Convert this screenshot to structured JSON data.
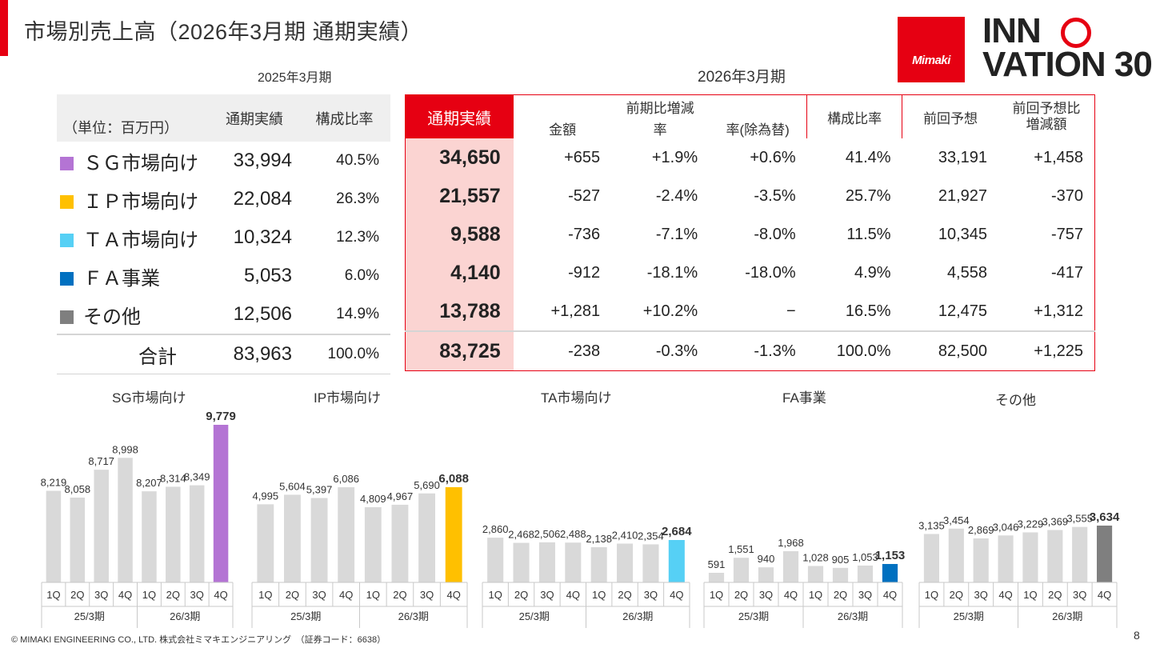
{
  "header": {
    "title": "市場別売上高（2026年3月期 通期実績）"
  },
  "logo": {
    "brand": "Mimaki",
    "line1": "INN",
    "line2": "VATION 30"
  },
  "left_table": {
    "period": "2025年3月期",
    "unit": "（単位：百万円）",
    "headers": [
      "通期実績",
      "構成比率"
    ],
    "rows": [
      {
        "segment": "ＳＧ市場向け",
        "actual": "33,994",
        "ratio": "40.5%",
        "color": "#b474d4"
      },
      {
        "segment": "ＩＰ市場向け",
        "actual": "22,084",
        "ratio": "26.3%",
        "color": "#ffc000"
      },
      {
        "segment": "ＴＡ市場向け",
        "actual": "10,324",
        "ratio": "12.3%",
        "color": "#56d0f5"
      },
      {
        "segment": "ＦＡ事業",
        "actual": "5,053",
        "ratio": "6.0%",
        "color": "#0070c0"
      },
      {
        "segment": "その他",
        "actual": "12,506",
        "ratio": "14.9%",
        "color": "#7f7f7f"
      }
    ],
    "total": {
      "label": "合計",
      "actual": "83,963",
      "ratio": "100.0%"
    }
  },
  "right_table": {
    "period": "2026年3月期",
    "headers": {
      "actual": "通期実績",
      "yoy_group": "前期比増減",
      "amount": "金額",
      "rate": "率",
      "rate_fx": "率(除為替)",
      "ratio": "構成比率",
      "prev_forecast": "前回予想",
      "vs_forecast_1": "前回予想比",
      "vs_forecast_2": "増減額"
    },
    "rows": [
      {
        "actual": "34,650",
        "amount": "+655",
        "rate": "+1.9%",
        "rate_fx": "+0.6%",
        "ratio": "41.4%",
        "forecast": "33,191",
        "diff": "+1,458"
      },
      {
        "actual": "21,557",
        "amount": "-527",
        "rate": "-2.4%",
        "rate_fx": "-3.5%",
        "ratio": "25.7%",
        "forecast": "21,927",
        "diff": "-370"
      },
      {
        "actual": "9,588",
        "amount": "-736",
        "rate": "-7.1%",
        "rate_fx": "-8.0%",
        "ratio": "11.5%",
        "forecast": "10,345",
        "diff": "-757"
      },
      {
        "actual": "4,140",
        "amount": "-912",
        "rate": "-18.1%",
        "rate_fx": "-18.0%",
        "ratio": "4.9%",
        "forecast": "4,558",
        "diff": "-417"
      },
      {
        "actual": "13,788",
        "amount": "+1,281",
        "rate": "+10.2%",
        "rate_fx": "−",
        "ratio": "16.5%",
        "forecast": "12,475",
        "diff": "+1,312"
      }
    ],
    "total": {
      "actual": "83,725",
      "amount": "-238",
      "rate": "-0.3%",
      "rate_fx": "-1.3%",
      "ratio": "100.0%",
      "forecast": "82,500",
      "diff": "+1,225"
    }
  },
  "chart_data": [
    {
      "type": "bar",
      "title": "SG市場向け",
      "categories": [
        "1Q",
        "2Q",
        "3Q",
        "4Q",
        "1Q",
        "2Q",
        "3Q",
        "4Q"
      ],
      "groups": [
        "25/3期",
        "26/3期"
      ],
      "values": [
        8219,
        8058,
        8717,
        8998,
        8207,
        8314,
        8349,
        9779
      ],
      "labels": [
        "8,219",
        "8,058",
        "8,717",
        "8,998",
        "8,207",
        "8,314",
        "8,349",
        "9,779"
      ],
      "highlight_color": "#b474d4",
      "base_color": "#d9d9d9"
    },
    {
      "type": "bar",
      "title": "IP市場向け",
      "categories": [
        "1Q",
        "2Q",
        "3Q",
        "4Q",
        "1Q",
        "2Q",
        "3Q",
        "4Q"
      ],
      "groups": [
        "25/3期",
        "26/3期"
      ],
      "values": [
        4995,
        5604,
        5397,
        6086,
        4809,
        4967,
        5690,
        6088
      ],
      "labels": [
        "4,995",
        "5,604",
        "5,397",
        "6,086",
        "4,809",
        "4,967",
        "5,690",
        "6,088"
      ],
      "highlight_color": "#ffc000",
      "base_color": "#d9d9d9"
    },
    {
      "type": "bar",
      "title": "TA市場向け",
      "categories": [
        "1Q",
        "2Q",
        "3Q",
        "4Q",
        "1Q",
        "2Q",
        "3Q",
        "4Q"
      ],
      "groups": [
        "25/3期",
        "26/3期"
      ],
      "values": [
        2860,
        2468,
        2506,
        2488,
        2138,
        2410,
        2354,
        2684
      ],
      "labels": [
        "2,860",
        "2,468",
        "2,506",
        "2,488",
        "2,138",
        "2,410",
        "2,354",
        "2,684"
      ],
      "highlight_color": "#56d0f5",
      "base_color": "#d9d9d9"
    },
    {
      "type": "bar",
      "title": "FA事業",
      "categories": [
        "1Q",
        "2Q",
        "3Q",
        "4Q",
        "1Q",
        "2Q",
        "3Q",
        "4Q"
      ],
      "groups": [
        "25/3期",
        "26/3期"
      ],
      "values": [
        591,
        1551,
        940,
        1968,
        1028,
        905,
        1053,
        1153
      ],
      "labels": [
        "591",
        "1,551",
        "940",
        "1,968",
        "1,028",
        "905",
        "1,053",
        "1,153"
      ],
      "highlight_color": "#0070c0",
      "base_color": "#d9d9d9"
    },
    {
      "type": "bar",
      "title": "その他",
      "categories": [
        "1Q",
        "2Q",
        "3Q",
        "4Q",
        "1Q",
        "2Q",
        "3Q",
        "4Q"
      ],
      "groups": [
        "25/3期",
        "26/3期"
      ],
      "values": [
        3135,
        3454,
        2869,
        3046,
        3229,
        3369,
        3555,
        3634
      ],
      "labels": [
        "3,135",
        "3,454",
        "2,869",
        "3,046",
        "3,229",
        "3,369",
        "3,555",
        "3,634"
      ],
      "highlight_color": "#7f7f7f",
      "base_color": "#d9d9d9"
    }
  ],
  "footer": {
    "copyright": "© MIMAKI ENGINEERING CO., LTD. 株式会社ミマキエンジニアリング　（証券コード：6638）",
    "page": "8"
  }
}
